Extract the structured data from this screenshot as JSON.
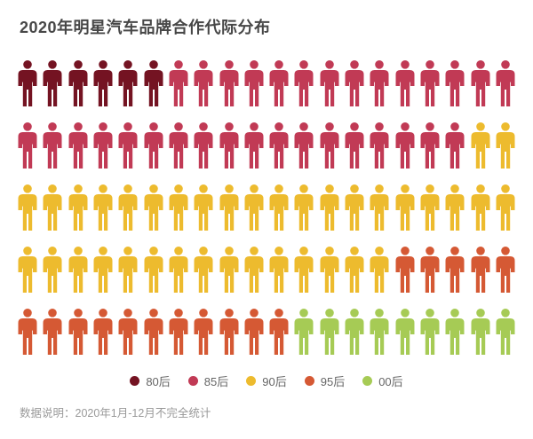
{
  "title": "2020年明星汽车品牌合作代际分布",
  "footer": {
    "note": "数据说明：2020年1月-12月不完全统计"
  },
  "legend": [
    {
      "label": "80后",
      "color": "#741322"
    },
    {
      "label": "85后",
      "color": "#C13A55"
    },
    {
      "label": "90后",
      "color": "#EDBB2E"
    },
    {
      "label": "95后",
      "color": "#D55934"
    },
    {
      "label": "00后",
      "color": "#A6CB55"
    }
  ],
  "chart_data": {
    "type": "pictogram-waffle",
    "title": "2020年明星汽车品牌合作代际分布",
    "total_units": 100,
    "icons_per_row": 20,
    "row_count": 5,
    "categories": [
      "80后",
      "85后",
      "90后",
      "95后",
      "00后"
    ],
    "values": [
      6,
      32,
      37,
      16,
      9
    ],
    "colors": {
      "80后": "#741322",
      "85后": "#C13A55",
      "90后": "#EDBB2E",
      "95后": "#D55934",
      "00后": "#A6CB55"
    },
    "rows_layout": [
      [
        [
          "80后",
          6
        ],
        [
          "85后",
          14
        ]
      ],
      [
        [
          "85后",
          18
        ],
        [
          "90后",
          2
        ]
      ],
      [
        [
          "90后",
          20
        ]
      ],
      [
        [
          "90后",
          15
        ],
        [
          "95后",
          5
        ]
      ],
      [
        [
          "95后",
          11
        ],
        [
          "00后",
          9
        ]
      ]
    ],
    "legend_position": "bottom",
    "note": "数据说明：2020年1月-12月不完全统计"
  }
}
